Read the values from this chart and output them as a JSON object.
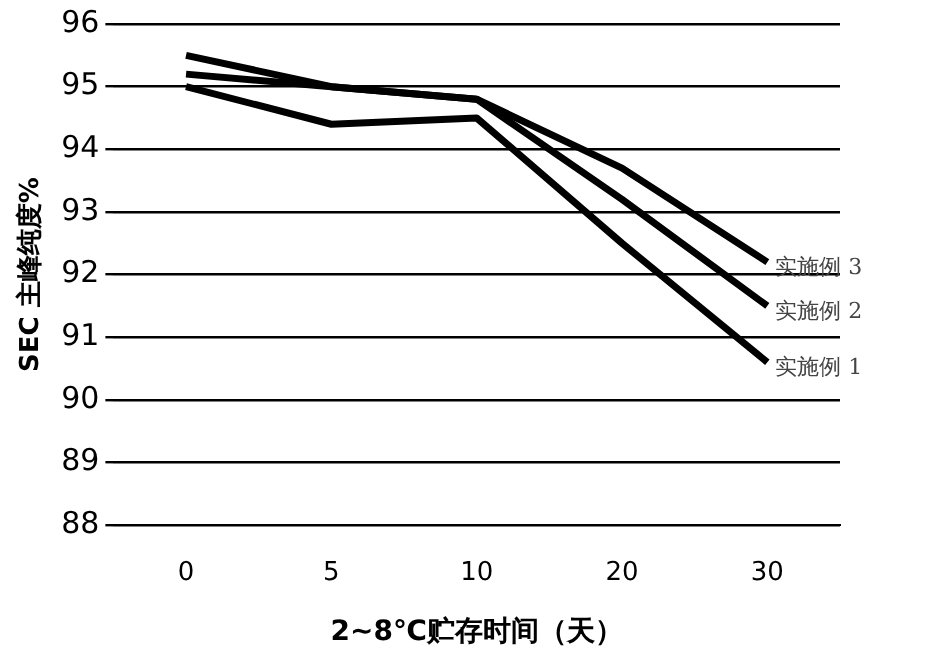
{
  "chart_data": {
    "type": "line",
    "xlabel": "2~8℃贮存时间（天）",
    "ylabel": "SEC 主峰纯度%",
    "categories": [
      "0",
      "5",
      "10",
      "20",
      "30"
    ],
    "series": [
      {
        "name": "实施例 1",
        "color": "#000000",
        "values": [
          95.0,
          94.4,
          94.5,
          92.5,
          90.6
        ]
      },
      {
        "name": "实施例 2",
        "color": "#000000",
        "values": [
          95.2,
          95.0,
          94.8,
          93.2,
          91.5
        ]
      },
      {
        "name": "实施例 3",
        "color": "#000000",
        "values": [
          95.5,
          95.0,
          94.8,
          93.7,
          92.2
        ]
      }
    ],
    "ylim": [
      88,
      96
    ],
    "yticks": [
      88,
      89,
      90,
      91,
      92,
      93,
      94,
      95,
      96
    ],
    "grid": "y",
    "legend": false,
    "marker": "none",
    "line_style": "solid"
  }
}
